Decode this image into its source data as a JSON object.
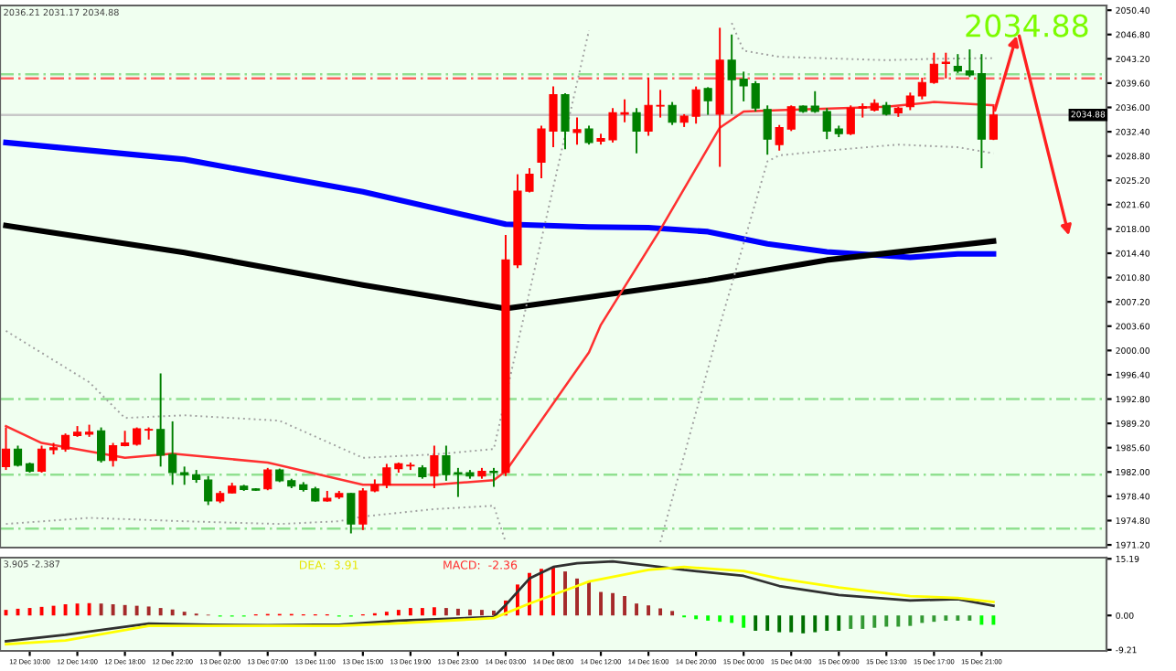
{
  "chart_data": [
    {
      "type": "candlestick",
      "categories": [
        null,
        null,
        null,
        null,
        null,
        null,
        null,
        null,
        null,
        null,
        null,
        null,
        null,
        null,
        null,
        null,
        null,
        null,
        null,
        null,
        null,
        null,
        null,
        null,
        null,
        null,
        null,
        null,
        null,
        null,
        null,
        null,
        null,
        null,
        null,
        null,
        null,
        null,
        null,
        null,
        null,
        null,
        null,
        null,
        null,
        null,
        null,
        null,
        null,
        null,
        null,
        null,
        null,
        null,
        null,
        null,
        null,
        null,
        null,
        null,
        null,
        null,
        null,
        null,
        null,
        null,
        null,
        null,
        null,
        null,
        null,
        null,
        null,
        null,
        null,
        null,
        null,
        null,
        null,
        null,
        null,
        null,
        null,
        null,
        null,
        null,
        null,
        null,
        null,
        null,
        null,
        null,
        null
      ],
      "ohlc": [
        [
          1982.8,
          1988.6,
          1982.3,
          1985.4
        ],
        [
          1985.4,
          1985.9,
          1982.8,
          1983.0
        ],
        [
          1983.2,
          1983.4,
          1981.9,
          1982.1
        ],
        [
          1982.1,
          1985.9,
          1981.9,
          1985.4
        ],
        [
          1985.3,
          1986.3,
          1984.6,
          1985.6
        ],
        [
          1985.4,
          1987.7,
          1985.0,
          1987.4
        ],
        [
          1987.4,
          1988.8,
          1987.2,
          1987.9
        ],
        [
          1987.6,
          1989.0,
          1987.2,
          1987.9
        ],
        [
          1988.1,
          1988.6,
          1983.4,
          1983.7
        ],
        [
          1983.7,
          1986.3,
          1982.8,
          1985.9
        ],
        [
          1985.9,
          1988.1,
          1985.8,
          1986.3
        ],
        [
          1986.1,
          1988.6,
          1985.9,
          1988.4
        ],
        [
          1988.2,
          1988.6,
          1986.8,
          1988.3
        ],
        [
          1988.3,
          1996.6,
          1982.8,
          1984.5
        ],
        [
          1984.6,
          1989.5,
          1980.1,
          1981.9
        ],
        [
          1981.9,
          1982.8,
          1980.1,
          1981.6
        ],
        [
          1981.6,
          1982.3,
          1980.4,
          1980.9
        ],
        [
          1980.8,
          1981.4,
          1977.1,
          1977.7
        ],
        [
          1977.7,
          1979.2,
          1977.4,
          1978.8
        ],
        [
          1978.9,
          1980.4,
          1978.8,
          1979.9
        ],
        [
          1979.9,
          1980.1,
          1979.2,
          1979.4
        ],
        [
          1979.5,
          1979.6,
          1979.2,
          1979.3
        ],
        [
          1979.5,
          1982.6,
          1979.3,
          1982.3
        ],
        [
          1982.3,
          1982.5,
          1980.5,
          1980.7
        ],
        [
          1980.7,
          1981.0,
          1979.6,
          1979.9
        ],
        [
          1980.1,
          1980.5,
          1979.1,
          1979.4
        ],
        [
          1979.5,
          1979.8,
          1977.6,
          1977.7
        ],
        [
          1977.7,
          1979.2,
          1977.6,
          1978.1
        ],
        [
          1978.3,
          1979.2,
          1978.0,
          1978.8
        ],
        [
          1978.8,
          1978.9,
          1972.9,
          1974.3
        ],
        [
          1974.3,
          1979.6,
          1973.4,
          1979.2
        ],
        [
          1979.2,
          1980.9,
          1979.0,
          1980.1
        ],
        [
          1980.1,
          1983.2,
          1979.6,
          1982.6
        ],
        [
          1982.5,
          1983.4,
          1981.9,
          1983.2
        ],
        [
          1982.9,
          1983.4,
          1982.3,
          1983.0
        ],
        [
          1982.6,
          1983.0,
          1981.0,
          1981.3
        ],
        [
          1981.4,
          1985.9,
          1979.6,
          1984.4
        ],
        [
          1984.4,
          1985.9,
          1980.7,
          1981.6
        ],
        [
          1981.9,
          1982.6,
          1978.3,
          1981.7
        ],
        [
          1981.9,
          1982.3,
          1981.0,
          1981.4
        ],
        [
          1981.4,
          1982.6,
          1981.0,
          1982.1
        ],
        [
          1982.1,
          1982.6,
          1979.8,
          1981.9
        ],
        [
          1981.9,
          2017.1,
          1981.4,
          2013.4
        ],
        [
          2012.7,
          2026.1,
          2012.2,
          2023.6
        ],
        [
          2023.6,
          2027.0,
          2023.4,
          2026.1
        ],
        [
          2027.9,
          2033.3,
          2025.5,
          2032.8
        ],
        [
          2032.5,
          2039.1,
          2030.1,
          2037.9
        ],
        [
          2037.9,
          2038.1,
          2029.8,
          2032.5
        ],
        [
          2032.3,
          2034.5,
          2030.5,
          2032.7
        ],
        [
          2032.8,
          2033.3,
          2030.5,
          2030.8
        ],
        [
          2031.0,
          2032.1,
          2030.5,
          2031.4
        ],
        [
          2031.2,
          2035.9,
          2030.8,
          2035.2
        ],
        [
          2035.0,
          2037.2,
          2033.8,
          2035.2
        ],
        [
          2035.2,
          2035.9,
          2029.2,
          2032.5
        ],
        [
          2032.5,
          2040.4,
          2031.8,
          2036.3
        ],
        [
          2036.2,
          2038.6,
          2034.5,
          2036.3
        ],
        [
          2036.3,
          2036.8,
          2033.4,
          2033.8
        ],
        [
          2033.8,
          2035.0,
          2033.1,
          2034.7
        ],
        [
          2034.7,
          2039.1,
          2033.6,
          2038.6
        ],
        [
          2038.8,
          2039.0,
          2034.9,
          2037.0
        ],
        [
          2035.0,
          2047.8,
          2027.2,
          2043.0
        ],
        [
          2043.0,
          2046.8,
          2035.0,
          2040.1
        ],
        [
          2040.2,
          2041.3,
          2036.9,
          2039.2
        ],
        [
          2039.5,
          2039.9,
          2035.4,
          2035.9
        ],
        [
          2035.7,
          2036.3,
          2029.0,
          2031.3
        ],
        [
          2030.5,
          2033.4,
          2029.6,
          2033.0
        ],
        [
          2032.8,
          2036.3,
          2032.5,
          2036.1
        ],
        [
          2036.2,
          2036.3,
          2035.2,
          2035.4
        ],
        [
          2036.2,
          2038.4,
          2035.2,
          2035.4
        ],
        [
          2035.4,
          2035.9,
          2031.3,
          2032.5
        ],
        [
          2032.8,
          2033.3,
          2031.6,
          2032.1
        ],
        [
          2032.1,
          2036.3,
          2031.9,
          2035.9
        ],
        [
          2035.9,
          2036.6,
          2034.5,
          2036.1
        ],
        [
          2035.6,
          2037.2,
          2035.4,
          2036.6
        ],
        [
          2036.3,
          2036.8,
          2034.8,
          2035.0
        ],
        [
          2035.2,
          2036.1,
          2034.6,
          2035.9
        ],
        [
          2036.1,
          2038.2,
          2035.6,
          2037.7
        ],
        [
          2037.7,
          2040.4,
          2037.2,
          2039.7
        ],
        [
          2039.7,
          2044.1,
          2039.5,
          2042.4
        ],
        [
          2042.5,
          2044.1,
          2040.3,
          2042.7
        ],
        [
          2042.1,
          2043.9,
          2041.1,
          2041.4
        ],
        [
          2041.4,
          2044.6,
          2040.5,
          2040.8
        ],
        [
          2041.0,
          2043.9,
          2027.0,
          2031.3
        ],
        [
          2031.3,
          2036.21,
          2031.17,
          2034.88
        ],
        null,
        null,
        null,
        null,
        null,
        null,
        null,
        null,
        null
      ],
      "colors": [
        "#ff0000",
        "#008000",
        "#008000",
        "#ff0000",
        "#ff0000",
        "#ff0000",
        "#ff0000",
        "#ff0000",
        "#008000",
        "#ff0000",
        "#ff0000",
        "#ff0000",
        "#ff0000",
        "#008000",
        "#008000",
        "#008000",
        "#008000",
        "#008000",
        "#ff0000",
        "#ff0000",
        "#008000",
        "#008000",
        "#ff0000",
        "#008000",
        "#008000",
        "#008000",
        "#008000",
        "#ff0000",
        "#ff0000",
        "#008000",
        "#ff0000",
        "#ff0000",
        "#ff0000",
        "#ff0000",
        "#ff0000",
        "#008000",
        "#ff0000",
        "#008000",
        "#008000",
        "#008000",
        "#ff0000",
        "#008000",
        "#ff0000",
        "#ff0000",
        "#ff0000",
        "#ff0000",
        "#ff0000",
        "#008000",
        "#ff0000",
        "#008000",
        "#ff0000",
        "#ff0000",
        "#ff0000",
        "#008000",
        "#ff0000",
        "#ff0000",
        "#008000",
        "#ff0000",
        "#ff0000",
        "#008000",
        "#ff0000",
        "#008000",
        "#008000",
        "#008000",
        "#008000",
        "#ff0000",
        "#ff0000",
        "#008000",
        "#008000",
        "#008000",
        "#008000",
        "#ff0000",
        "#ff0000",
        "#ff0000",
        "#008000",
        "#ff0000",
        "#ff0000",
        "#ff0000",
        "#ff0000",
        "#ff0000",
        "#008000",
        "#008000",
        "#008000",
        "#ff0000",
        null,
        null,
        null,
        null,
        null,
        null,
        null,
        null,
        null
      ],
      "series": [
        {
          "type": "line",
          "color": "#0000ff",
          "values": [
            2030.8,
            null,
            null,
            null,
            null,
            null,
            null,
            null,
            null,
            null,
            null,
            null,
            null,
            null,
            null,
            2028.3,
            null,
            null,
            null,
            null,
            null,
            null,
            null,
            null,
            null,
            null,
            null,
            null,
            null,
            null,
            2023.5,
            null,
            null,
            null,
            null,
            null,
            null,
            null,
            null,
            null,
            null,
            null,
            2018.7,
            null,
            null,
            null,
            null,
            null,
            null,
            2018.3,
            null,
            null,
            null,
            null,
            2018.2,
            null,
            null,
            null,
            null,
            2017.6,
            null,
            null,
            null,
            null,
            2015.8,
            null,
            null,
            null,
            null,
            2014.6,
            null,
            null,
            null,
            null,
            null,
            null,
            2013.8,
            null,
            null,
            null,
            2014.3,
            null,
            null,
            2014.3,
            null,
            null,
            null,
            null,
            null,
            null,
            null,
            null,
            null
          ]
        },
        {
          "type": "line",
          "color": "#000000",
          "values": [
            2018.5,
            null,
            null,
            null,
            null,
            null,
            null,
            null,
            null,
            null,
            null,
            null,
            null,
            null,
            null,
            2014.5,
            null,
            null,
            null,
            null,
            null,
            null,
            null,
            null,
            null,
            null,
            null,
            null,
            null,
            null,
            2009.7,
            null,
            null,
            null,
            null,
            null,
            null,
            null,
            null,
            null,
            null,
            null,
            2006.2,
            null,
            null,
            null,
            null,
            null,
            null,
            2007.9,
            null,
            null,
            null,
            null,
            null,
            null,
            null,
            null,
            null,
            2010.4,
            null,
            null,
            null,
            null,
            null,
            null,
            null,
            null,
            null,
            2013.4,
            null,
            null,
            null,
            null,
            null,
            null,
            null,
            2015.0,
            null,
            null,
            null,
            null,
            null,
            2016.2,
            null,
            null,
            null,
            null,
            null,
            null,
            null,
            null,
            null
          ]
        },
        {
          "type": "line",
          "color": "#ff3030",
          "values": [
            1988.8,
            null,
            null,
            1986.3,
            null,
            null,
            null,
            null,
            null,
            null,
            1984.1,
            null,
            null,
            null,
            1984.7,
            null,
            null,
            null,
            null,
            null,
            null,
            null,
            1983.4,
            null,
            null,
            null,
            null,
            null,
            null,
            null,
            1980.1,
            null,
            null,
            null,
            null,
            null,
            1980.1,
            null,
            null,
            null,
            null,
            1980.8,
            1982.1,
            null,
            null,
            null,
            null,
            null,
            null,
            1999.7,
            2003.8,
            null,
            null,
            null,
            null,
            2017.9,
            null,
            null,
            null,
            null,
            2033.0,
            null,
            2035.4,
            null,
            null,
            2035.6,
            null,
            null,
            null,
            null,
            null,
            null,
            null,
            null,
            2036.1,
            null,
            null,
            null,
            2036.8,
            null,
            null,
            null,
            null,
            2036.3,
            null,
            null,
            null,
            null,
            null,
            null,
            null,
            null,
            null
          ]
        },
        {
          "type": "line",
          "color": "#a0a0a0",
          "line_style": "dotted",
          "values": [
            2002.9,
            null,
            null,
            null,
            null,
            null,
            null,
            1995.3,
            null,
            null,
            1990.0,
            null,
            null,
            null,
            null,
            1990.4,
            null,
            null,
            null,
            null,
            null,
            null,
            null,
            1989.6,
            null,
            null,
            null,
            null,
            null,
            null,
            1984.1,
            null,
            null,
            null,
            null,
            null,
            1984.6,
            null,
            null,
            null,
            null,
            1985.4,
            null,
            null,
            null,
            null,
            null,
            null,
            null,
            2047.4,
            null,
            null,
            null,
            null,
            null,
            null,
            null,
            null,
            null,
            null,
            null,
            null,
            null,
            null,
            null,
            null,
            null,
            null,
            null,
            null,
            null,
            null,
            null,
            null,
            null,
            null,
            null,
            null,
            null,
            null,
            null,
            null,
            null,
            null,
            null,
            null,
            null,
            null,
            null,
            null,
            null,
            null,
            null
          ]
        },
        {
          "type": "line",
          "color": "#a0a0a0",
          "line_style": "dotted",
          "values": [
            null,
            null,
            null,
            null,
            null,
            null,
            null,
            null,
            null,
            null,
            null,
            null,
            null,
            null,
            null,
            null,
            null,
            null,
            null,
            null,
            null,
            null,
            null,
            null,
            null,
            null,
            null,
            null,
            null,
            null,
            null,
            null,
            null,
            null,
            null,
            null,
            null,
            null,
            null,
            null,
            null,
            null,
            null,
            null,
            null,
            null,
            null,
            null,
            null,
            null,
            null,
            null,
            null,
            null,
            null,
            null,
            null,
            null,
            null,
            null,
            null,
            2048.5,
            2044.4,
            null,
            null,
            2043.5,
            null,
            null,
            null,
            null,
            null,
            null,
            null,
            null,
            2043.0,
            null,
            null,
            null,
            2043.2,
            null,
            null,
            null,
            null,
            2043.3,
            null,
            null,
            null,
            null,
            null,
            null,
            null,
            null,
            null
          ]
        },
        {
          "type": "line",
          "color": "#a0a0a0",
          "line_style": "dotted",
          "values": [
            1974.3,
            null,
            null,
            null,
            null,
            null,
            null,
            1975.2,
            null,
            null,
            null,
            null,
            null,
            null,
            null,
            1974.7,
            null,
            null,
            null,
            null,
            null,
            null,
            null,
            1974.3,
            null,
            null,
            null,
            null,
            1974.7,
            null,
            1975.4,
            null,
            null,
            null,
            null,
            null,
            1976.5,
            null,
            null,
            null,
            null,
            1977.0,
            1971.6,
            null,
            null,
            null,
            null,
            null,
            null,
            null,
            null,
            null,
            null,
            null,
            null,
            null,
            null,
            null,
            null,
            null,
            null,
            null,
            null,
            null,
            null,
            null,
            null,
            null,
            null,
            null,
            null,
            null,
            null,
            null,
            null,
            null,
            null,
            null,
            null,
            null,
            null,
            null,
            null,
            null,
            null,
            null,
            null,
            null,
            null,
            null,
            null,
            null,
            null
          ]
        },
        {
          "type": "line",
          "color": "#a0a0a0",
          "line_style": "dotted",
          "values": [
            null,
            null,
            null,
            null,
            null,
            null,
            null,
            null,
            null,
            null,
            null,
            null,
            null,
            null,
            null,
            null,
            null,
            null,
            null,
            null,
            null,
            null,
            null,
            null,
            null,
            null,
            null,
            null,
            null,
            null,
            null,
            null,
            null,
            null,
            null,
            null,
            null,
            null,
            null,
            null,
            null,
            null,
            null,
            null,
            null,
            null,
            null,
            null,
            null,
            null,
            null,
            null,
            null,
            null,
            null,
            1971.6,
            null,
            null,
            null,
            null,
            2003.7,
            null,
            null,
            null,
            2028.0,
            2028.9,
            null,
            null,
            null,
            2029.6,
            null,
            null,
            null,
            null,
            null,
            2030.5,
            null,
            null,
            null,
            null,
            2030.1,
            null,
            null,
            2029.2,
            null,
            null,
            null,
            null,
            null,
            null,
            null,
            null,
            null
          ]
        }
      ],
      "ref_lines": [
        {
          "axis": "y",
          "value": 2034.88,
          "label": "2034.88",
          "color": "#c8c8c8",
          "line_style": "solid"
        },
        {
          "axis": "y",
          "value": 2040.3,
          "color": "#ff6060",
          "line_style": "dashed"
        },
        {
          "axis": "y",
          "value": 2040.9,
          "color": "#90e090",
          "line_style": "dashed"
        },
        {
          "axis": "y",
          "value": 1992.8,
          "color": "#90e090",
          "line_style": "dashed"
        },
        {
          "axis": "y",
          "value": 1981.6,
          "color": "#90e090",
          "line_style": "dashed"
        },
        {
          "axis": "y",
          "value": 1973.6,
          "color": "#90e090",
          "line_style": "dashed"
        }
      ],
      "annotations": [
        "2036.21 2031.17 2034.88",
        "2034.88"
      ],
      "ylim": [
        1970.8,
        2051.1
      ],
      "yticks": [
        {
          "value": 2050.4,
          "label": "2050.40"
        },
        {
          "value": 2046.8,
          "label": "2046.80"
        },
        {
          "value": 2043.2,
          "label": "2043.20"
        },
        {
          "value": 2039.6,
          "label": "2039.60"
        },
        {
          "value": 2036.0,
          "label": "2036.00"
        },
        {
          "value": 2032.4,
          "label": "2032.40"
        },
        {
          "value": 2028.8,
          "label": "2028.80"
        },
        {
          "value": 2025.2,
          "label": "2025.20"
        },
        {
          "value": 2021.6,
          "label": "2021.60"
        },
        {
          "value": 2018.0,
          "label": "2018.00"
        },
        {
          "value": 2014.4,
          "label": "2014.40"
        },
        {
          "value": 2010.8,
          "label": "2010.80"
        },
        {
          "value": 2007.2,
          "label": "2007.20"
        },
        {
          "value": 2003.6,
          "label": "2003.60"
        },
        {
          "value": 2000.0,
          "label": "2000.00"
        },
        {
          "value": 1996.4,
          "label": "1996.40"
        },
        {
          "value": 1992.8,
          "label": "1992.80"
        },
        {
          "value": 1989.2,
          "label": "1989.20"
        },
        {
          "value": 1985.6,
          "label": "1985.60"
        },
        {
          "value": 1982.0,
          "label": "1982.00"
        },
        {
          "value": 1978.4,
          "label": "1978.40"
        },
        {
          "value": 1974.8,
          "label": "1974.80"
        },
        {
          "value": 1971.2,
          "label": "1971.20"
        }
      ],
      "tick_labels": "y"
    },
    {
      "type": "bar",
      "categories": [
        null,
        null,
        "12 Dec 10:00",
        null,
        null,
        null,
        "12 Dec 14:00",
        null,
        null,
        null,
        "12 Dec 18:00",
        null,
        null,
        null,
        "12 Dec 22:00",
        null,
        null,
        null,
        "13 Dec 02:00",
        null,
        null,
        null,
        "13 Dec 07:00",
        null,
        null,
        null,
        "13 Dec 11:00",
        null,
        null,
        null,
        "13 Dec 15:00",
        null,
        null,
        null,
        "13 Dec 19:00",
        null,
        null,
        null,
        "13 Dec 23:00",
        null,
        null,
        null,
        "14 Dec 03:00",
        null,
        null,
        null,
        "14 Dec 08:00",
        null,
        null,
        null,
        "14 Dec 12:00",
        null,
        null,
        null,
        "14 Dec 16:00",
        null,
        null,
        null,
        "14 Dec 20:00",
        null,
        null,
        null,
        "15 Dec 00:00",
        null,
        null,
        null,
        "15 Dec 04:00",
        null,
        null,
        null,
        "15 Dec 09:00",
        null,
        null,
        null,
        "15 Dec 13:00",
        null,
        null,
        null,
        "15 Dec 17:00",
        null,
        null,
        null,
        "15 Dec 21:00",
        null,
        null,
        null,
        null,
        null,
        null,
        null,
        null,
        null,
        null
      ],
      "series": [
        {
          "type": "bar",
          "values": [
            1.5,
            1.8,
            2.0,
            2.3,
            2.6,
            3.0,
            3.2,
            3.3,
            3.2,
            3.0,
            2.8,
            2.6,
            2.4,
            2.0,
            1.6,
            1.0,
            0.5,
            0.2,
            -0.3,
            -0.3,
            -0.3,
            0.3,
            0.4,
            0.4,
            0.4,
            0.3,
            0.3,
            0.3,
            -0.3,
            -0.3,
            0.3,
            0.6,
            1.0,
            1.5,
            2.0,
            2.0,
            2.2,
            2.0,
            1.8,
            1.6,
            1.5,
            1.3,
            4.0,
            8.3,
            11.4,
            12.5,
            13.0,
            11.8,
            9.9,
            9.1,
            6.3,
            6.0,
            5.2,
            3.2,
            2.7,
            1.9,
            1.2,
            -0.5,
            -1.0,
            -1.4,
            -1.7,
            -2.0,
            -3.3,
            -4.1,
            -4.1,
            -4.5,
            -4.5,
            -4.8,
            -4.5,
            -4.1,
            -4.1,
            -3.6,
            -3.6,
            -3.3,
            -3.0,
            -3.0,
            -2.8,
            -2.0,
            -1.7,
            -1.4,
            -1.4,
            -1.4,
            -2.5,
            -2.5,
            null,
            null,
            null,
            null,
            null,
            null,
            null,
            null,
            null
          ],
          "colors": [
            "#ff0000",
            "#ff0000",
            "#ff0000",
            "#ff0000",
            "#ff0000",
            "#ff0000",
            "#ff0000",
            "#ff0000",
            "#a52a2a",
            "#a52a2a",
            "#a52a2a",
            "#a52a2a",
            "#a52a2a",
            "#a52a2a",
            "#a52a2a",
            "#a52a2a",
            "#a52a2a",
            "#a52a2a",
            "#00ff00",
            "#00ff00",
            "#00ff00",
            "#ff0000",
            "#ff0000",
            "#ff0000",
            "#ff0000",
            "#ff0000",
            "#ff0000",
            "#ff0000",
            "#00ff00",
            "#00ff00",
            "#ff0000",
            "#ff0000",
            "#ff0000",
            "#ff0000",
            "#ff0000",
            "#ff0000",
            "#ff0000",
            "#a52a2a",
            "#a52a2a",
            "#a52a2a",
            "#a52a2a",
            "#a52a2a",
            "#ff0000",
            "#ff0000",
            "#ff0000",
            "#ff0000",
            "#ff0000",
            "#a52a2a",
            "#a52a2a",
            "#a52a2a",
            "#a52a2a",
            "#a52a2a",
            "#a52a2a",
            "#a52a2a",
            "#a52a2a",
            "#a52a2a",
            "#a52a2a",
            "#00ff00",
            "#00ff00",
            "#00ff00",
            "#00ff00",
            "#00ff00",
            "#00ff00",
            "#007000",
            "#007000",
            "#007000",
            "#007000",
            "#007000",
            "#007000",
            "#007000",
            "#007000",
            "#339933",
            "#339933",
            "#339933",
            "#339933",
            "#339933",
            "#339933",
            "#339933",
            "#339933",
            "#339933",
            "#339933",
            "#339933",
            "#00ff00",
            "#00ff00",
            null,
            null,
            null,
            null,
            null,
            null,
            null,
            null,
            null
          ]
        },
        {
          "type": "line",
          "color": "#303030",
          "values": [
            -6.9,
            null,
            null,
            null,
            null,
            -5.2,
            null,
            null,
            null,
            null,
            null,
            null,
            -2.2,
            null,
            null,
            null,
            null,
            -2.5,
            null,
            null,
            null,
            null,
            -2.6,
            null,
            null,
            null,
            -2.5,
            null,
            -2.5,
            null,
            null,
            null,
            null,
            -1.4,
            null,
            null,
            null,
            null,
            null,
            null,
            null,
            -0.4,
            2.8,
            null,
            9.9,
            null,
            13.0,
            null,
            14.0,
            null,
            null,
            14.5,
            null,
            null,
            13.4,
            null,
            null,
            12.2,
            null,
            null,
            null,
            null,
            10.6,
            null,
            null,
            7.9,
            null,
            null,
            null,
            null,
            5.5,
            null,
            null,
            null,
            null,
            null,
            4.0,
            null,
            null,
            null,
            4.4,
            null,
            null,
            2.6,
            null,
            null,
            null,
            null,
            null,
            null,
            null,
            null,
            null
          ]
        },
        {
          "type": "line",
          "color": "#ffff00",
          "values": [
            -7.7,
            null,
            null,
            null,
            null,
            -6.7,
            null,
            null,
            null,
            null,
            null,
            null,
            -2.8,
            null,
            null,
            null,
            null,
            -2.8,
            null,
            null,
            null,
            null,
            -2.8,
            null,
            null,
            null,
            null,
            null,
            -2.8,
            null,
            null,
            null,
            null,
            -2.1,
            null,
            null,
            null,
            null,
            null,
            null,
            null,
            -0.7,
            null,
            null,
            3.2,
            null,
            null,
            null,
            7.9,
            9.1,
            null,
            null,
            null,
            null,
            12.2,
            null,
            null,
            13.0,
            null,
            null,
            null,
            null,
            11.9,
            null,
            null,
            9.9,
            null,
            null,
            null,
            null,
            7.5,
            null,
            null,
            null,
            null,
            null,
            5.2,
            null,
            null,
            null,
            4.7,
            null,
            null,
            3.6,
            null,
            null,
            null,
            null,
            null,
            null,
            null,
            null,
            null
          ]
        }
      ],
      "annotations": [
        "3.905 -2.387",
        "DEA:  3.91",
        "MACD:  -2.36"
      ],
      "ylim": [
        -9.5,
        15.5
      ],
      "yticks": [
        {
          "value": 15.19,
          "label": "15.19"
        },
        {
          "value": 0,
          "label": "0.00"
        },
        {
          "value": -9.21,
          "label": "-9.21"
        }
      ]
    }
  ]
}
